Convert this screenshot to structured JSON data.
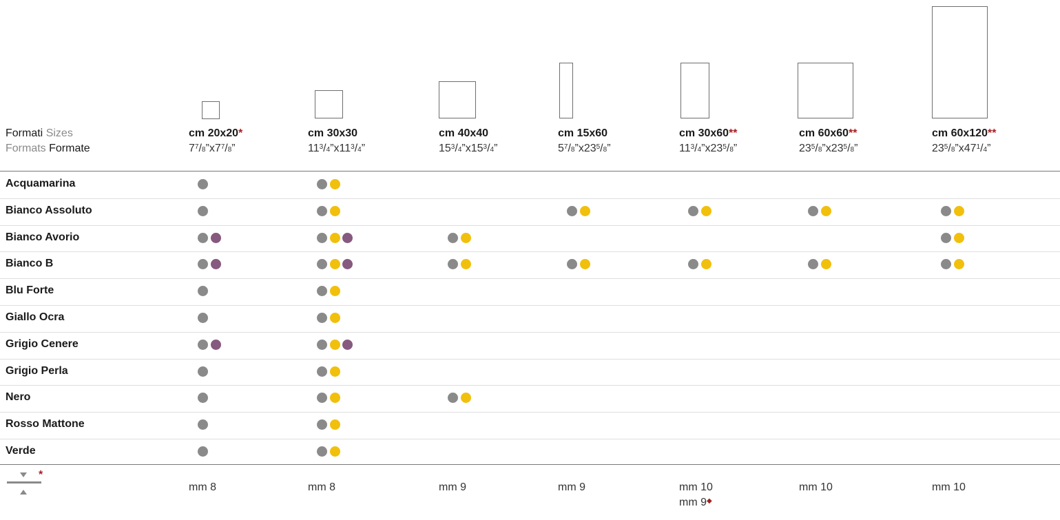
{
  "header": {
    "formati": "Formati",
    "sizes": "Sizes",
    "formats": "Formats",
    "formate": "Formate"
  },
  "sizes": [
    {
      "title": "cm 20x20",
      "stars": "*",
      "inch": {
        "w_int": "7",
        "w_num": "7",
        "w_den": "8",
        "h_int": "7",
        "h_num": "7",
        "h_den": "8"
      }
    },
    {
      "title": "cm 30x30",
      "stars": "",
      "inch": {
        "w_int": "11",
        "w_num": "3",
        "w_den": "4",
        "h_int": "11",
        "h_num": "3",
        "h_den": "4"
      }
    },
    {
      "title": "cm 40x40",
      "stars": "",
      "inch": {
        "w_int": "15",
        "w_num": "3",
        "w_den": "4",
        "h_int": "15",
        "h_num": "3",
        "h_den": "4"
      }
    },
    {
      "title": "cm 15x60",
      "stars": "",
      "inch": {
        "w_int": "5",
        "w_num": "7",
        "w_den": "8",
        "h_int": "23",
        "h_num": "5",
        "h_den": "8"
      }
    },
    {
      "title": "cm 30x60",
      "stars": "**",
      "inch": {
        "w_int": "11",
        "w_num": "3",
        "w_den": "4",
        "h_int": "23",
        "h_num": "5",
        "h_den": "8"
      }
    },
    {
      "title": "cm 60x60",
      "stars": "**",
      "inch": {
        "w_int": "23",
        "w_num": "5",
        "w_den": "8",
        "h_int": "23",
        "h_num": "5",
        "h_den": "8"
      }
    },
    {
      "title": "cm 60x120",
      "stars": "**",
      "inch": {
        "w_int": "23",
        "w_num": "5",
        "w_den": "8",
        "h_int": "47",
        "h_num": "1",
        "h_den": "4"
      }
    }
  ],
  "dot_legend": {
    "g": "grey",
    "y": "yellow",
    "p": "purple"
  },
  "colors": {
    "grey_dot": "#8a8a8a",
    "yellow_dot": "#f1c00d",
    "purple_dot": "#86597f",
    "star_red": "#a61e22"
  },
  "rows": [
    {
      "name": "Acquamarina",
      "cells": [
        "g",
        "gy",
        "",
        "",
        "",
        "",
        ""
      ]
    },
    {
      "name": "Bianco Assoluto",
      "cells": [
        "g",
        "gy",
        "",
        "gy",
        "gy",
        "gy",
        "gy"
      ]
    },
    {
      "name": "Bianco Avorio",
      "cells": [
        "gp",
        "gyp",
        "gy",
        "",
        "",
        "",
        "gy"
      ]
    },
    {
      "name": "Bianco B",
      "cells": [
        "gp",
        "gyp",
        "gy",
        "gy",
        "gy",
        "gy",
        "gy"
      ]
    },
    {
      "name": "Blu Forte",
      "cells": [
        "g",
        "gy",
        "",
        "",
        "",
        "",
        ""
      ]
    },
    {
      "name": "Giallo Ocra",
      "cells": [
        "g",
        "gy",
        "",
        "",
        "",
        "",
        ""
      ]
    },
    {
      "name": "Grigio Cenere",
      "cells": [
        "gp",
        "gyp",
        "",
        "",
        "",
        "",
        ""
      ]
    },
    {
      "name": "Grigio Perla",
      "cells": [
        "g",
        "gy",
        "",
        "",
        "",
        "",
        ""
      ]
    },
    {
      "name": "Nero",
      "cells": [
        "g",
        "gy",
        "gy",
        "",
        "",
        "",
        ""
      ]
    },
    {
      "name": "Rosso Mattone",
      "cells": [
        "g",
        "gy",
        "",
        "",
        "",
        "",
        ""
      ]
    },
    {
      "name": "Verde",
      "cells": [
        "g",
        "gy",
        "",
        "",
        "",
        "",
        ""
      ]
    }
  ],
  "thickness": {
    "symbol_star": "*",
    "values": [
      "mm 8",
      "mm 8",
      "mm 9",
      "mm 9",
      "mm 10",
      "mm 10",
      "mm 10"
    ],
    "extra": {
      "col": 4,
      "text": "mm 9",
      "mark": "◆"
    }
  }
}
